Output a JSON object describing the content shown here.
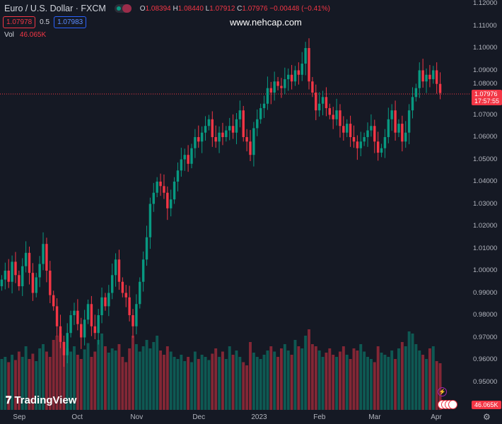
{
  "header": {
    "symbol": "Euro / U.S. Dollar · FXCM",
    "o_label": "O",
    "o": "1.08394",
    "h_label": "H",
    "h": "1.08440",
    "l_label": "L",
    "l": "1.07912",
    "c_label": "C",
    "c": "1.07976",
    "change": "−0.00448 (−0.41%)",
    "bid": "1.07978",
    "spread": "0.5",
    "ask": "1.07983",
    "vol_label": "Vol",
    "vol_value": "46.065K"
  },
  "watermark": "www.nehcap.com",
  "last_price": {
    "price": "1.07976",
    "countdown": "17:57:55",
    "volume": "46.065K"
  },
  "logo": "TradingView",
  "colors": {
    "up": "#089981",
    "down": "#f23645",
    "bg": "#151924"
  },
  "chart_data": {
    "type": "candlestick",
    "title": "Euro / U.S. Dollar · FXCM",
    "ylim": [
      0.94,
      1.12
    ],
    "y_ticks": [
      "1.12000",
      "1.11000",
      "1.10000",
      "1.09000",
      "1.08000",
      "1.07000",
      "1.06000",
      "1.05000",
      "1.04000",
      "1.03000",
      "1.02000",
      "1.01000",
      "1.00000",
      "0.99000",
      "0.98000",
      "0.97000",
      "0.96000",
      "0.95000"
    ],
    "x_ticks": [
      {
        "label": "Sep",
        "i": 5
      },
      {
        "label": "Oct",
        "i": 22
      },
      {
        "label": "Nov",
        "i": 39
      },
      {
        "label": "Dec",
        "i": 57
      },
      {
        "label": "2023",
        "i": 74
      },
      {
        "label": "Feb",
        "i": 92
      },
      {
        "label": "Mar",
        "i": 108
      },
      {
        "label": "Apr",
        "i": 126
      }
    ],
    "closes": [
      0.996,
      1.0,
      0.995,
      1.004,
      0.998,
      0.993,
      1.002,
      1.008,
      0.999,
      0.99,
      0.997,
      1.003,
      1.012,
      1.0,
      0.989,
      0.984,
      0.975,
      0.968,
      0.962,
      0.972,
      0.98,
      0.982,
      0.976,
      0.97,
      0.978,
      0.985,
      0.975,
      0.972,
      0.98,
      0.988,
      0.984,
      0.99,
      0.998,
      1.005,
      0.995,
      0.99,
      0.988,
      0.98,
      0.975,
      0.985,
      0.995,
      1.005,
      1.015,
      1.03,
      1.035,
      1.04,
      1.038,
      1.035,
      1.028,
      1.032,
      1.04,
      1.045,
      1.05,
      1.052,
      1.048,
      1.055,
      1.06,
      1.058,
      1.062,
      1.065,
      1.068,
      1.06,
      1.058,
      1.062,
      1.06,
      1.063,
      1.065,
      1.062,
      1.068,
      1.072,
      1.06,
      1.058,
      1.052,
      1.064,
      1.068,
      1.073,
      1.075,
      1.082,
      1.08,
      1.085,
      1.083,
      1.082,
      1.086,
      1.088,
      1.085,
      1.09,
      1.088,
      1.093,
      1.1,
      1.085,
      1.08,
      1.072,
      1.075,
      1.078,
      1.073,
      1.07,
      1.068,
      1.072,
      1.065,
      1.062,
      1.066,
      1.06,
      1.058,
      1.055,
      1.058,
      1.06,
      1.063,
      1.065,
      1.058,
      1.053,
      1.055,
      1.06,
      1.068,
      1.072,
      1.062,
      1.066,
      1.058,
      1.062,
      1.072,
      1.078,
      1.082,
      1.09,
      1.085,
      1.088,
      1.086,
      1.09,
      1.0839,
      1.0798
    ],
    "volumes": [
      48,
      50,
      45,
      52,
      47,
      55,
      50,
      60,
      48,
      53,
      46,
      58,
      62,
      55,
      50,
      66,
      70,
      72,
      64,
      58,
      55,
      60,
      52,
      48,
      57,
      63,
      50,
      55,
      66,
      72,
      60,
      54,
      58,
      56,
      62,
      50,
      45,
      58,
      70,
      62,
      55,
      60,
      66,
      58,
      64,
      70,
      56,
      52,
      60,
      55,
      50,
      48,
      52,
      46,
      50,
      45,
      55,
      48,
      52,
      50,
      47,
      53,
      58,
      50,
      55,
      48,
      60,
      52,
      56,
      50,
      45,
      42,
      64,
      54,
      50,
      48,
      52,
      56,
      60,
      55,
      50,
      58,
      62,
      56,
      52,
      66,
      60,
      58,
      70,
      76,
      62,
      60,
      56,
      50,
      54,
      58,
      52,
      50,
      55,
      60,
      52,
      48,
      58,
      56,
      62,
      55,
      50,
      48,
      45,
      60,
      54,
      52,
      50,
      56,
      48,
      58,
      64,
      60,
      74,
      72,
      62,
      56,
      52,
      48,
      58,
      60,
      46,
      44
    ]
  }
}
